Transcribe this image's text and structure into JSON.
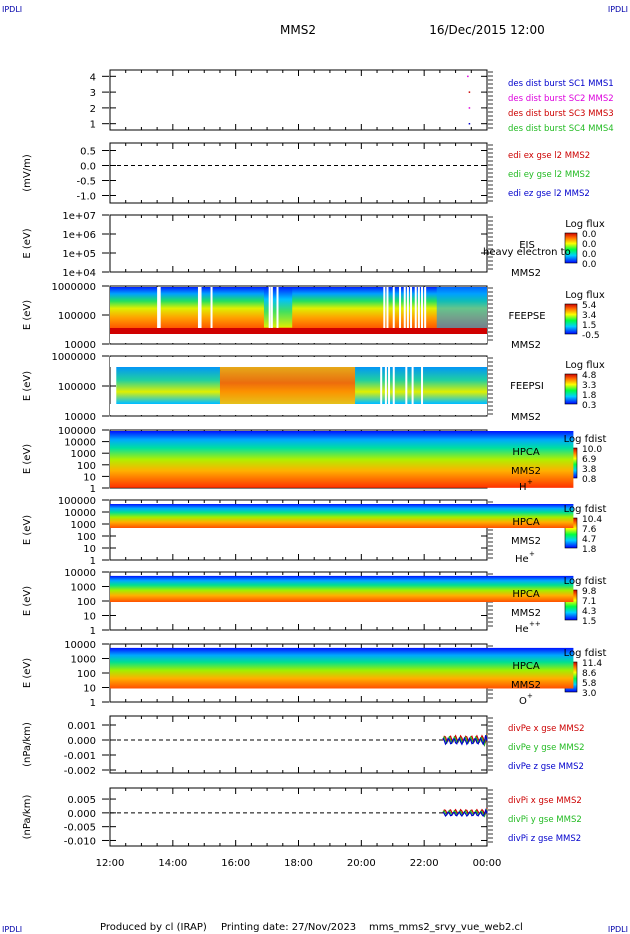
{
  "corner_label": "IPDLI",
  "header": {
    "spacecraft": "MMS2",
    "datetime": "16/Dec/2015 12:00"
  },
  "footer": {
    "produced": "Produced by cl (IRAP)",
    "printing": "Printing date: 27/Nov/2023",
    "script": "mms_mms2_srvy_vue_web2.cl"
  },
  "colors": {
    "red": "#cc0000",
    "magenta": "#dd00dd",
    "green": "#22bb22",
    "blue": "#0000cc"
  },
  "time_ticks": [
    "12:00",
    "14:00",
    "16:00",
    "18:00",
    "20:00",
    "22:00",
    "00:00"
  ],
  "chart_data": [
    {
      "type": "scatter",
      "id": "burst",
      "ytick_labels": [
        "4",
        "3",
        "2",
        "1"
      ],
      "yvalues": [
        4,
        3,
        2,
        1
      ],
      "ylim": [
        0.6,
        4.4
      ],
      "legend": [
        {
          "text": "des dist burst SC1 MMS1",
          "color": "blue"
        },
        {
          "text": "des dist burst SC2 MMS2",
          "color": "magenta"
        },
        {
          "text": "des dist burst SC3 MMS3",
          "color": "red"
        },
        {
          "text": "des dist burst SC4 MMS4",
          "color": "green"
        }
      ],
      "points": [
        {
          "x": "23:25",
          "y": 3,
          "color": "red"
        },
        {
          "x": "23:25",
          "y": 2,
          "color": "magenta"
        },
        {
          "x": "23:25",
          "y": 1,
          "color": "blue"
        },
        {
          "x": "23:22",
          "y": 4,
          "color": "magenta"
        }
      ]
    },
    {
      "type": "line",
      "id": "edi",
      "ylabel": "(mV/m)",
      "ytick_labels": [
        "0.5",
        "0.0",
        "-0.5",
        "-1.0"
      ],
      "yvalues": [
        0.5,
        0.0,
        -0.5,
        -1.0
      ],
      "ylim": [
        -1.25,
        0.75
      ],
      "dashed_zero": true,
      "legend": [
        {
          "text": "edi ex gse l2 MMS2",
          "color": "red"
        },
        {
          "text": "edi ey gse l2 MMS2",
          "color": "green"
        },
        {
          "text": "edi ez gse l2 MMS2",
          "color": "blue"
        }
      ]
    },
    {
      "type": "heatmap",
      "id": "eis",
      "ylabel": "E (eV)",
      "ytick_labels": [
        "1e+07",
        "1e+06",
        "1e+05",
        "1e+04"
      ],
      "instrument": [
        "EIS",
        "MMS2"
      ],
      "overlay_text": "heavy electron to",
      "colorbar": {
        "title": "Log flux",
        "labels": [
          "0.0",
          "0.0",
          "0.0",
          "0.0"
        ]
      }
    },
    {
      "type": "heatmap",
      "id": "feepse",
      "ylabel": "E (eV)",
      "ytick_labels": [
        "1000000",
        "100000",
        "10000"
      ],
      "instrument": [
        "FEEPSE",
        "MMS2"
      ],
      "colorbar": {
        "title": "Log flux",
        "labels": [
          "5.4",
          "3.4",
          "1.5",
          "-0.5"
        ]
      }
    },
    {
      "type": "heatmap",
      "id": "feepsi",
      "ylabel": "E (eV)",
      "ytick_labels": [
        "1000000",
        "100000",
        "10000"
      ],
      "instrument": [
        "FEEPSI",
        "MMS2"
      ],
      "colorbar": {
        "title": "Log flux",
        "labels": [
          "4.8",
          "3.3",
          "1.8",
          "0.3"
        ]
      }
    },
    {
      "type": "heatmap",
      "id": "hpca_h",
      "ylabel": "E (eV)",
      "ytick_labels": [
        "100000",
        "10000",
        "1000",
        "100",
        "10",
        "1"
      ],
      "instrument": [
        "HPCA",
        "MMS2"
      ],
      "species": "H",
      "species_charge": "+",
      "colorbar": {
        "title": "Log fdist",
        "labels": [
          "10.0",
          "6.9",
          "3.8",
          "0.8"
        ]
      }
    },
    {
      "type": "heatmap",
      "id": "hpca_he1",
      "ylabel": "E (eV)",
      "ytick_labels": [
        "100000",
        "10000",
        "1000",
        "100",
        "10",
        "1"
      ],
      "instrument": [
        "HPCA",
        "MMS2"
      ],
      "species": "He",
      "species_charge": "+",
      "colorbar": {
        "title": "Log fdist",
        "labels": [
          "10.4",
          "7.6",
          "4.7",
          "1.8"
        ]
      }
    },
    {
      "type": "heatmap",
      "id": "hpca_he2",
      "ylabel": "E (eV)",
      "ytick_labels": [
        "10000",
        "1000",
        "100",
        "10",
        "1"
      ],
      "instrument": [
        "HPCA",
        "MMS2"
      ],
      "species": "He",
      "species_charge": "++",
      "colorbar": {
        "title": "Log fdist",
        "labels": [
          "9.8",
          "7.1",
          "4.3",
          "1.5"
        ]
      }
    },
    {
      "type": "heatmap",
      "id": "hpca_o",
      "ylabel": "E (eV)",
      "ytick_labels": [
        "10000",
        "1000",
        "100",
        "10",
        "1"
      ],
      "instrument": [
        "HPCA",
        "MMS2"
      ],
      "species": "O",
      "species_charge": "+",
      "colorbar": {
        "title": "Log fdist",
        "labels": [
          "11.4",
          "8.6",
          "5.8",
          "3.0"
        ]
      }
    },
    {
      "type": "line",
      "id": "divpe",
      "ylabel": "(nPa/km)",
      "ytick_labels": [
        "0.001",
        "0.000",
        "-0.001",
        "-0.002"
      ],
      "yvalues": [
        0.001,
        0.0,
        -0.001,
        -0.002
      ],
      "ylim": [
        -0.0022,
        0.0016
      ],
      "dashed_zero": true,
      "legend": [
        {
          "text": "divPe x gse MMS2",
          "color": "red"
        },
        {
          "text": "divPe y gse MMS2",
          "color": "green"
        },
        {
          "text": "divPe z gse MMS2",
          "color": "blue"
        }
      ]
    },
    {
      "type": "line",
      "id": "divpi",
      "ylabel": "(nPa/km)",
      "ytick_labels": [
        "0.005",
        "0.000",
        "-0.005",
        "-0.010"
      ],
      "yvalues": [
        0.005,
        0.0,
        -0.005,
        -0.01
      ],
      "ylim": [
        -0.012,
        0.009
      ],
      "dashed_zero": true,
      "legend": [
        {
          "text": "divPi x gse MMS2",
          "color": "red"
        },
        {
          "text": "divPi y gse MMS2",
          "color": "green"
        },
        {
          "text": "divPi z gse MMS2",
          "color": "blue"
        }
      ]
    }
  ]
}
